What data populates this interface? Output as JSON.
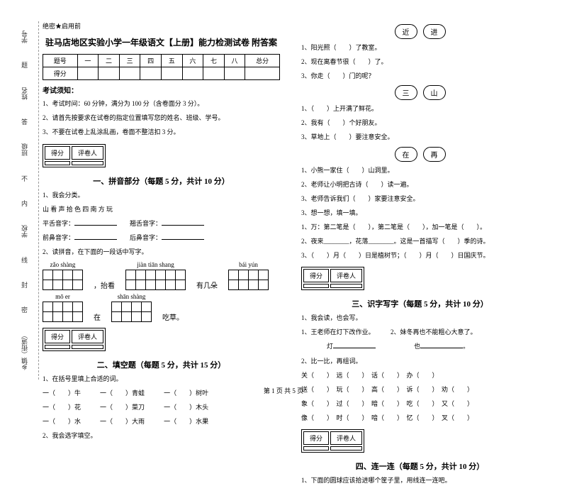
{
  "binding": {
    "a": "乡镇（街道）",
    "b": "学校",
    "c": "班级",
    "d": "姓名",
    "e": "学号",
    "dash1": "密",
    "dash2": "封",
    "dash3": "线",
    "dash4": "内",
    "dash5": "不",
    "dash6": "答",
    "dash7": "题"
  },
  "secret": "绝密★启用前",
  "title": "驻马店地区实验小学一年级语文【上册】能力检测试卷 附答案",
  "score_header": [
    "题号",
    "一",
    "二",
    "三",
    "四",
    "五",
    "六",
    "七",
    "八",
    "总分"
  ],
  "score_label": "得分",
  "notice_title": "考试须知：",
  "notice1": "1、考试时间：60 分钟，满分为 100 分（含卷面分 3 分）。",
  "notice2": "2、请首先按要求在试卷的指定位置填写您的姓名、班级、学号。",
  "notice3": "3、不要在试卷上乱涂乱画，卷面不整洁扣 3 分。",
  "sec_score": "得分",
  "sec_marker": "评卷人",
  "sec1_title": "一、拼音部分（每题 5 分，共计 10 分）",
  "sec1_1": "1、我会分类。",
  "sec1_1a": "山 看 声 拾 色 四 南 方 玩",
  "sec1_1b": "平舌音字：",
  "sec1_1c": "翘舌音字：",
  "sec1_1d": "前鼻音字：",
  "sec1_1e": "后鼻音字：",
  "sec1_2": "2、读拼音，在下面的一段话中写字。",
  "py1": "zǎo shàng",
  "py2": "jiàn tiān shang",
  "py3": "bái yún",
  "txt1": "，抬看",
  "txt2": "有几朵",
  "py4": "mō   er",
  "py5": "shān shàng",
  "txt3": "在",
  "txt4": "吃草。",
  "sec2_title": "二、填空题（每题 5 分，共计 15 分）",
  "sec2_1": "1、在括号里填上合适的词。",
  "sec2_1a": "一（　　）牛",
  "sec2_1b": "一（　　）青蛙",
  "sec2_1c": "一（　　）树叶",
  "sec2_1d": "一（　　）花",
  "sec2_1e": "一（　　）菜刀",
  "sec2_1f": "一（　　）木头",
  "sec2_1g": "一（　　）水",
  "sec2_1h": "一（　　）大雨",
  "sec2_1i": "一（　　）水果",
  "sec2_2": "2、我会选字填空。",
  "pair1a": "近",
  "pair1b": "进",
  "p1_1": "1、阳光照（　　）了教室。",
  "p1_2": "2、现在离春节很（　　）了。",
  "p1_3": "3、你走（　　）门的呢？",
  "pair2a": "三",
  "pair2b": "山",
  "p2_1": "1、（　　）上开满了鲜花。",
  "p2_2": "2、我有（　　）个好朋友。",
  "p2_3": "3、草地上（　　）要注意安全。",
  "pair3a": "在",
  "pair3b": "再",
  "p3_1": "1、小熊一家住（　　）山洞里。",
  "p3_2": "2、老师让小明把古诗（　　）读一遍。",
  "p3_3": "3、老师告诉我们（　　）家要注意安全。",
  "sec2_3": "3、想一想，填一填。",
  "sec2_3a": "1、万：第二笔是（　　），第二笔是（　　），加一笔是（　　）。",
  "sec2_3b": "2、夜来________，花落________。这是一首描写（　　）季的诗。",
  "sec2_3c": "3、（　　）月（　　）日是植树节；（　　）月（　　）日国庆节。",
  "sec3_title": "三、识字写字（每题 5 分，共计 10 分）",
  "sec3_1": "1、我会读，也会写。",
  "sec3_1a": "1、王老师在灯下改作业。",
  "sec3_1b": "2、妹冬再也不能粗心大意了。",
  "sec3_1c": "灯",
  "sec3_1d": "也",
  "sec3_2": "2、比一比，再组词。",
  "w1": "关（　　）　远（　　）　话（　　）　办（　　）",
  "w2": "送（　　）　玩（　　）　高（　　）　诉（　　）　劝（　　）",
  "w3": "象（　　）　过（　　）　暗（　　）　吃（　　）　又（　　）",
  "w4": "像（　　）　时（　　）　喑（　　）　忆（　　）　叉（　　）",
  "sec4_title": "四、连一连（每题 5 分，共计 10 分）",
  "sec4_1": "1、下面的圆球应该拾进哪个筐子里，用线连一连吧。",
  "footer": "第 1 页 共 5 页"
}
